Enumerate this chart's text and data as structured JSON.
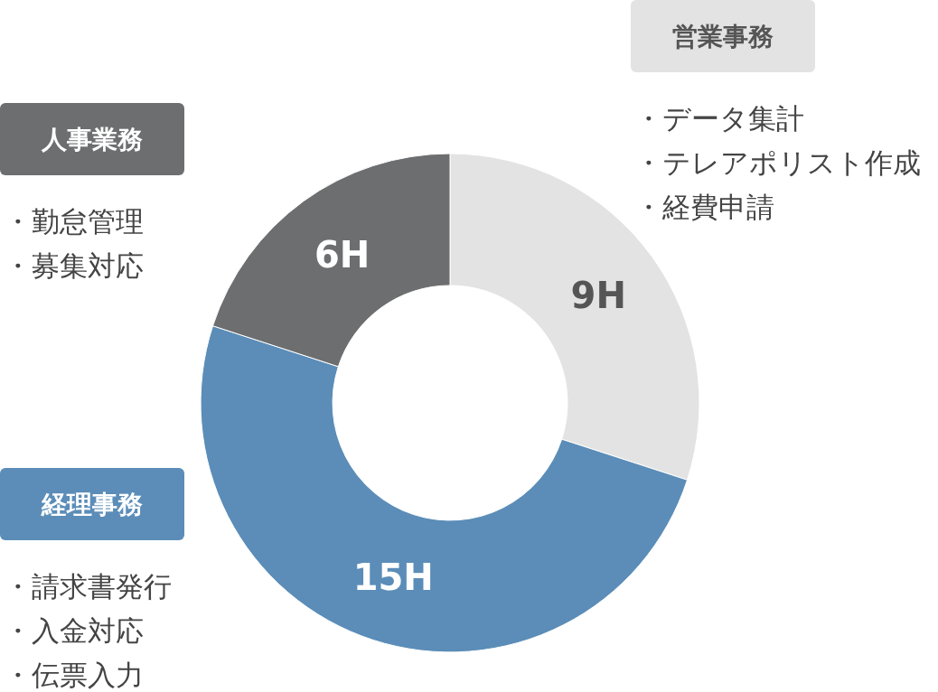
{
  "chart_data": {
    "type": "donut",
    "categories": [
      "営業事務",
      "経理事務",
      "人事業務"
    ],
    "values": [
      9,
      15,
      6
    ],
    "value_labels": [
      "9H",
      "15H",
      "6H"
    ],
    "colors": [
      "#e3e3e3",
      "#5b8db8",
      "#6d6e70"
    ],
    "annotations": [
      "・データ集計",
      "・テレアポリスト作成",
      "・経費申請",
      "・請求書発行",
      "・入金対応",
      "・伝票入力",
      "・勤怠管理",
      "・募集対応"
    ]
  }
}
